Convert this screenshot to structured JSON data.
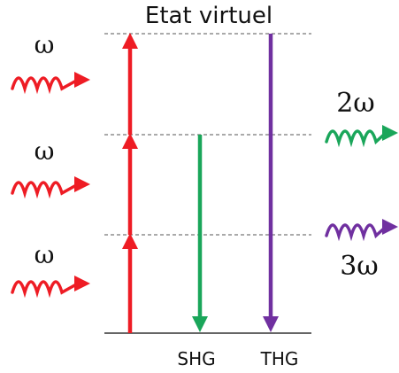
{
  "title": "Etat virtuel",
  "photons_in": [
    {
      "label": "ω"
    },
    {
      "label": "ω"
    },
    {
      "label": "ω"
    }
  ],
  "photons_out": [
    {
      "label": "2ω",
      "color": "#1aa65a"
    },
    {
      "label": "3ω",
      "color": "#7030a0"
    }
  ],
  "processes": {
    "shg": "SHG",
    "thg": "THG"
  },
  "colors": {
    "excitation": "#ee1c24",
    "shg": "#1aa65a",
    "thg": "#7030a0",
    "levels": "#555555",
    "ground": "#333333"
  }
}
